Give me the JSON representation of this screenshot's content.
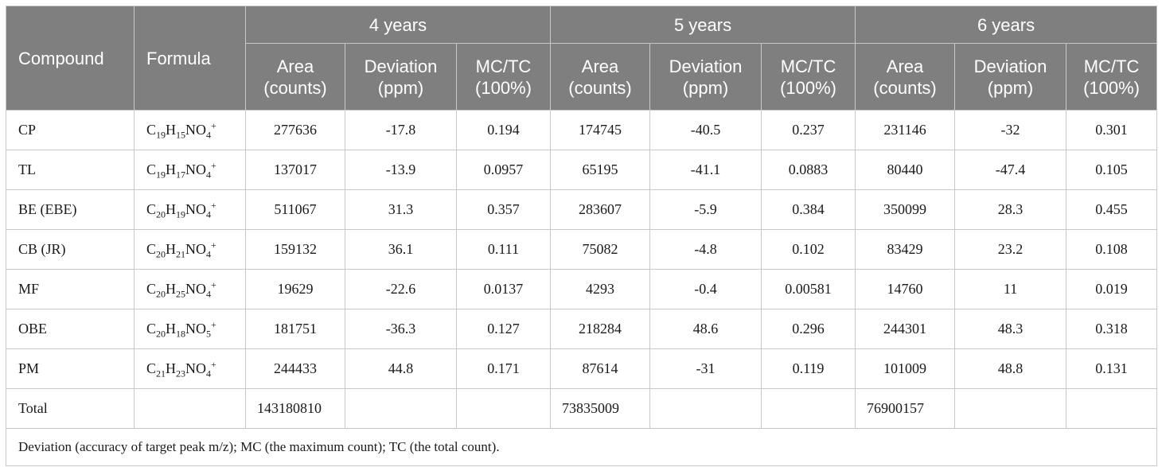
{
  "header": {
    "compound": "Compound",
    "formula": "Formula",
    "groups": [
      "4 years",
      "5 years",
      "6 years"
    ],
    "sub_columns": [
      {
        "line1": "Area",
        "line2": "(counts)"
      },
      {
        "line1": "Deviation",
        "line2": "(ppm)"
      },
      {
        "line1": "MC/TC",
        "line2": "(100%)"
      }
    ]
  },
  "rows": [
    {
      "compound": "CP",
      "f": {
        "c": "19",
        "h": "15",
        "tail": "NO",
        "tail_n": "4",
        "charge": "+"
      },
      "v": [
        "277636",
        "-17.8",
        "0.194",
        "174745",
        "-40.5",
        "0.237",
        "231146",
        "-32",
        "0.301"
      ]
    },
    {
      "compound": "TL",
      "f": {
        "c": "19",
        "h": "17",
        "tail": "NO",
        "tail_n": "4",
        "charge": "+"
      },
      "v": [
        "137017",
        "-13.9",
        "0.0957",
        "65195",
        "-41.1",
        "0.0883",
        "80440",
        "-47.4",
        "0.105"
      ]
    },
    {
      "compound": "BE (EBE)",
      "f": {
        "c": "20",
        "h": "19",
        "tail": "NO",
        "tail_n": "4",
        "charge": "+"
      },
      "v": [
        "511067",
        "31.3",
        "0.357",
        "283607",
        "-5.9",
        "0.384",
        "350099",
        "28.3",
        "0.455"
      ]
    },
    {
      "compound": "CB (JR)",
      "f": {
        "c": "20",
        "h": "21",
        "tail": "NO",
        "tail_n": "4",
        "charge": "+"
      },
      "v": [
        "159132",
        "36.1",
        "0.111",
        "75082",
        "-4.8",
        "0.102",
        "83429",
        "23.2",
        "0.108"
      ]
    },
    {
      "compound": "MF",
      "f": {
        "c": "20",
        "h": "25",
        "tail": "NO",
        "tail_n": "4",
        "charge": "+"
      },
      "v": [
        "19629",
        "-22.6",
        "0.0137",
        "4293",
        "-0.4",
        "0.00581",
        "14760",
        "11",
        "0.019"
      ]
    },
    {
      "compound": "OBE",
      "f": {
        "c": "20",
        "h": "18",
        "tail": "NO",
        "tail_n": "5",
        "charge": "+"
      },
      "v": [
        "181751",
        "-36.3",
        "0.127",
        "218284",
        "48.6",
        "0.296",
        "244301",
        "48.3",
        "0.318"
      ]
    },
    {
      "compound": "PM",
      "f": {
        "c": "21",
        "h": "23",
        "tail": "NO",
        "tail_n": "4",
        "charge": "+"
      },
      "v": [
        "244433",
        "44.8",
        "0.171",
        "87614",
        "-31",
        "0.119",
        "101009",
        "48.8",
        "0.131"
      ]
    }
  ],
  "total": {
    "label": "Total",
    "values": [
      "143180810",
      "73835009",
      "76900157"
    ]
  },
  "note": "Deviation (accuracy of target peak m/z); MC (the maximum count); TC (the total count).",
  "colors": {
    "header_bg": "#7f7f7f",
    "header_text": "#ffffff",
    "border": "#c8c8c8"
  }
}
